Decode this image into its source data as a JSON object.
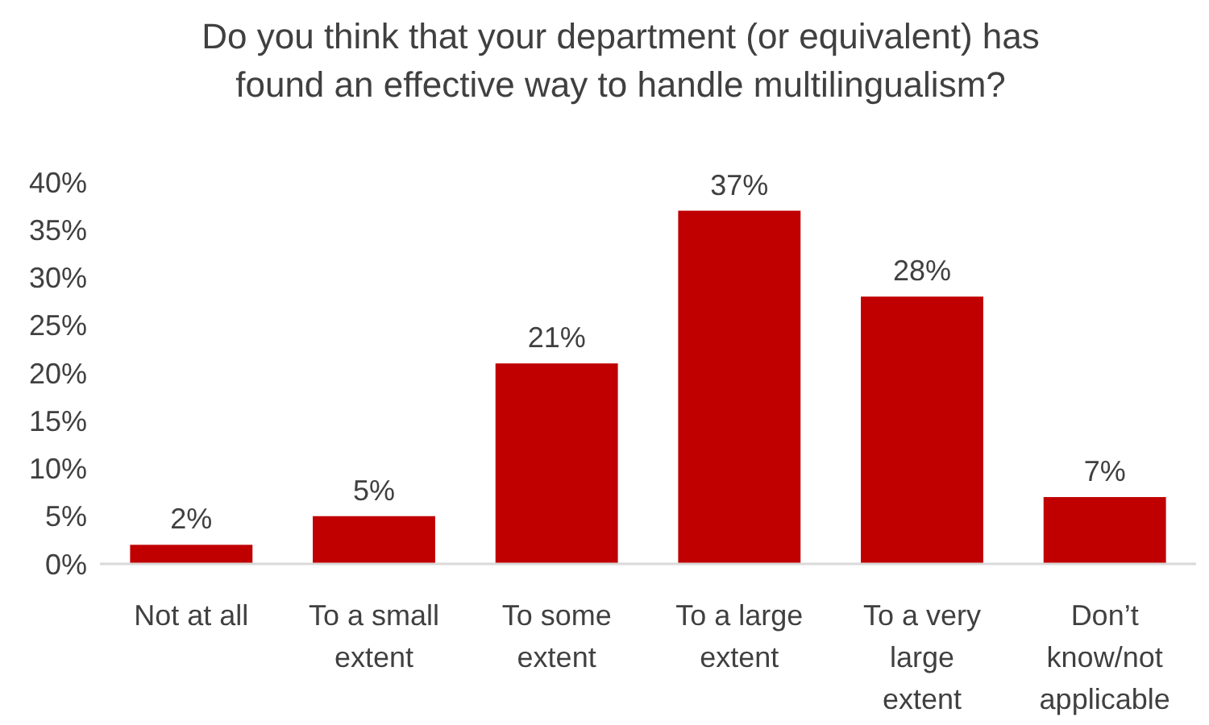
{
  "chart_data": {
    "type": "bar",
    "title": "Do you think that your department (or equivalent) has found an effective way to handle multilingualism?",
    "categories": [
      "Not at all",
      "To a small extent",
      "To some extent",
      "To a large extent",
      "To a very large extent",
      "Don’t know/not applicable"
    ],
    "values": [
      2,
      5,
      21,
      37,
      28,
      7
    ],
    "color": "#c00000",
    "value_labels": [
      "2%",
      "5%",
      "21%",
      "37%",
      "28%",
      "7%"
    ],
    "grid": false,
    "ylim": [
      0,
      40
    ],
    "yticks": [
      {
        "value": 0,
        "label": "0%"
      },
      {
        "value": 5,
        "label": "5%"
      },
      {
        "value": 10,
        "label": "10%"
      },
      {
        "value": 15,
        "label": "15%"
      },
      {
        "value": 20,
        "label": "20%"
      },
      {
        "value": 25,
        "label": "25%"
      },
      {
        "value": 30,
        "label": "30%"
      },
      {
        "value": 35,
        "label": "35%"
      },
      {
        "value": 40,
        "label": "40%"
      }
    ]
  }
}
